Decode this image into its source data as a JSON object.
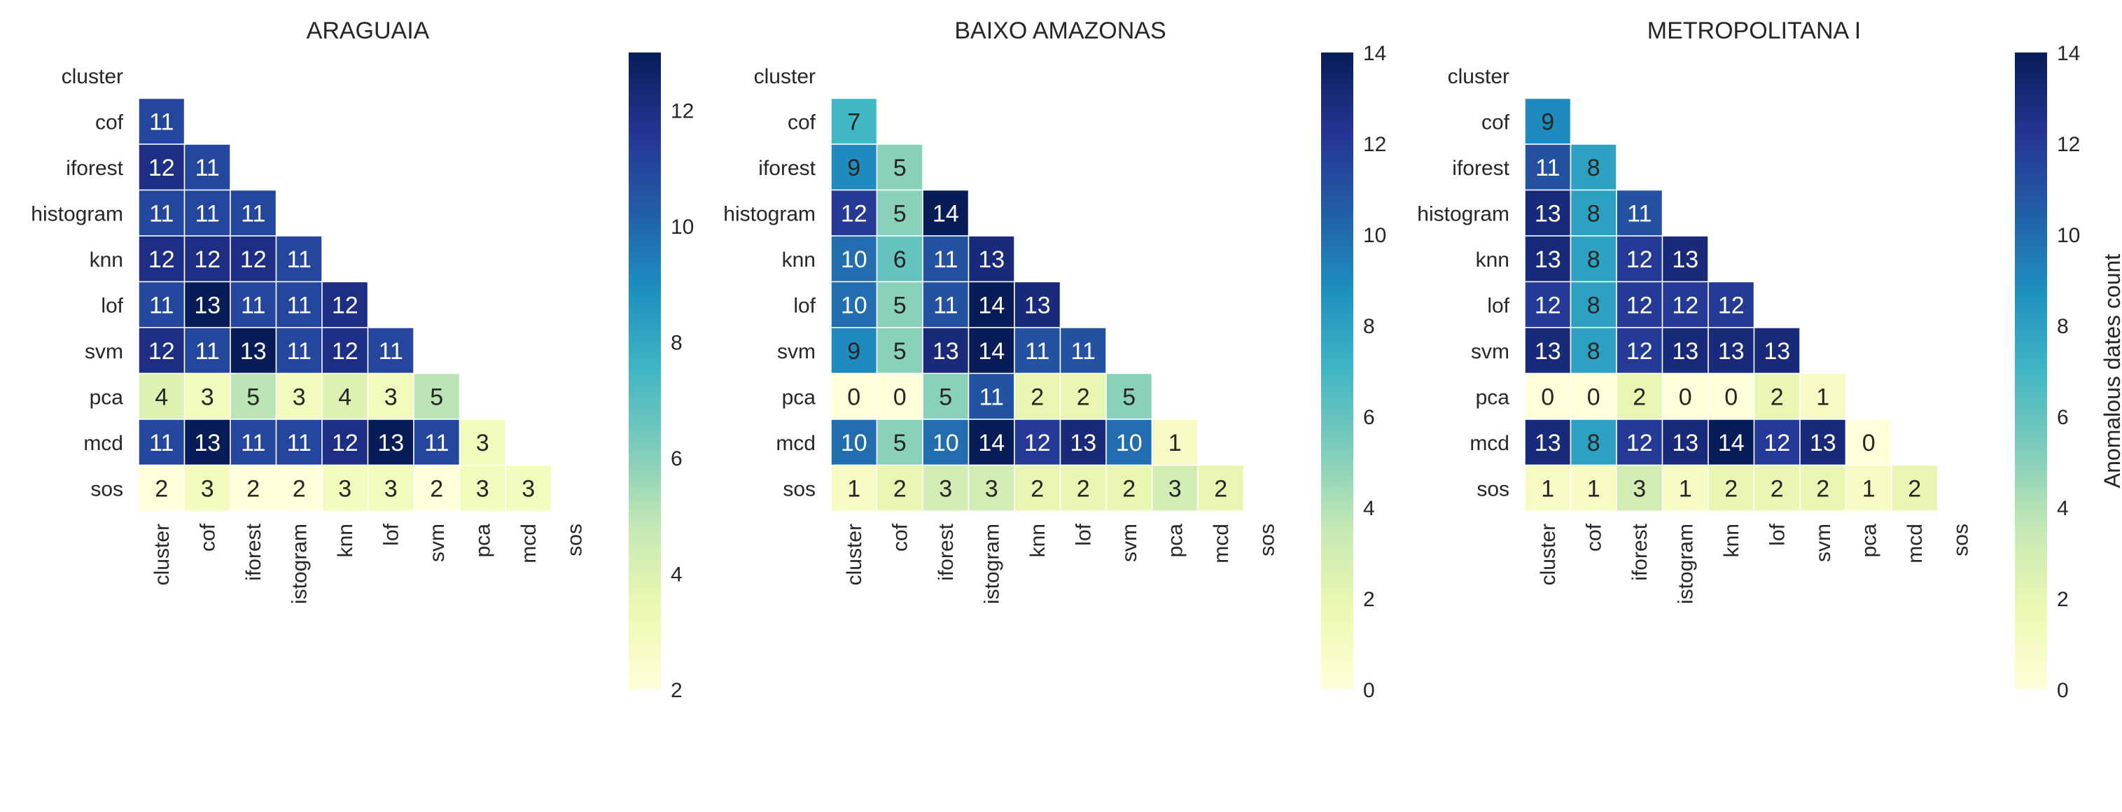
{
  "chart_data": [
    {
      "type": "heatmap",
      "title": "ARAGUAIA",
      "rows": [
        "cluster",
        "cof",
        "iforest",
        "histogram",
        "knn",
        "lof",
        "svm",
        "pca",
        "mcd",
        "sos"
      ],
      "cols": [
        "cluster",
        "cof",
        "iforest",
        "istogram",
        "knn",
        "lof",
        "svm",
        "pca",
        "mcd",
        "sos"
      ],
      "values": [
        [],
        [
          11
        ],
        [
          12,
          11
        ],
        [
          11,
          11,
          11
        ],
        [
          12,
          12,
          12,
          11
        ],
        [
          11,
          13,
          11,
          11,
          12
        ],
        [
          12,
          11,
          13,
          11,
          12,
          11
        ],
        [
          4,
          3,
          5,
          3,
          4,
          3,
          5
        ],
        [
          11,
          13,
          11,
          11,
          12,
          13,
          11,
          3
        ],
        [
          2,
          3,
          2,
          2,
          3,
          3,
          2,
          3,
          3
        ]
      ],
      "vmin": 2,
      "vmax": 13,
      "colorbar_ticks": [
        "2",
        "4",
        "6",
        "8",
        "10",
        "12"
      ],
      "colorbar_tick_values": [
        2,
        4,
        6,
        8,
        10,
        12
      ],
      "colorbar_label": ""
    },
    {
      "type": "heatmap",
      "title": "BAIXO AMAZONAS",
      "rows": [
        "cluster",
        "cof",
        "iforest",
        "histogram",
        "knn",
        "lof",
        "svm",
        "pca",
        "mcd",
        "sos"
      ],
      "cols": [
        "cluster",
        "cof",
        "iforest",
        "istogram",
        "knn",
        "lof",
        "svm",
        "pca",
        "mcd",
        "sos"
      ],
      "values": [
        [],
        [
          7
        ],
        [
          9,
          5
        ],
        [
          12,
          5,
          14
        ],
        [
          10,
          6,
          11,
          13
        ],
        [
          10,
          5,
          11,
          14,
          13
        ],
        [
          9,
          5,
          13,
          14,
          11,
          11
        ],
        [
          0,
          0,
          5,
          11,
          2,
          2,
          5
        ],
        [
          10,
          5,
          10,
          14,
          12,
          13,
          10,
          1
        ],
        [
          1,
          2,
          3,
          3,
          2,
          2,
          2,
          3,
          2
        ]
      ],
      "vmin": 0,
      "vmax": 14,
      "colorbar_ticks": [
        "0",
        "2",
        "4",
        "6",
        "8",
        "10",
        "12",
        "14"
      ],
      "colorbar_tick_values": [
        0,
        2,
        4,
        6,
        8,
        10,
        12,
        14
      ],
      "colorbar_label": ""
    },
    {
      "type": "heatmap",
      "title": "METROPOLITANA I",
      "rows": [
        "cluster",
        "cof",
        "iforest",
        "histogram",
        "knn",
        "lof",
        "svm",
        "pca",
        "mcd",
        "sos"
      ],
      "cols": [
        "cluster",
        "cof",
        "iforest",
        "istogram",
        "knn",
        "lof",
        "svm",
        "pca",
        "mcd",
        "sos"
      ],
      "values": [
        [],
        [
          9
        ],
        [
          11,
          8
        ],
        [
          13,
          8,
          11
        ],
        [
          13,
          8,
          12,
          13
        ],
        [
          12,
          8,
          12,
          12,
          12
        ],
        [
          13,
          8,
          12,
          13,
          13,
          13
        ],
        [
          0,
          0,
          2,
          0,
          0,
          2,
          1
        ],
        [
          13,
          8,
          12,
          13,
          14,
          12,
          13,
          0
        ],
        [
          1,
          1,
          3,
          1,
          2,
          2,
          2,
          1,
          2
        ]
      ],
      "vmin": 0,
      "vmax": 14,
      "colorbar_ticks": [
        "0",
        "2",
        "4",
        "6",
        "8",
        "10",
        "12",
        "14"
      ],
      "colorbar_tick_values": [
        0,
        2,
        4,
        6,
        8,
        10,
        12,
        14
      ],
      "colorbar_label": "Anomalous dates count"
    }
  ],
  "colormap": {
    "name": "YlGnBu",
    "stops": [
      "#ffffd9",
      "#edf8b1",
      "#c7e9b4",
      "#7fcdbb",
      "#41b6c4",
      "#1d91c0",
      "#225ea8",
      "#253494",
      "#081d58"
    ]
  }
}
